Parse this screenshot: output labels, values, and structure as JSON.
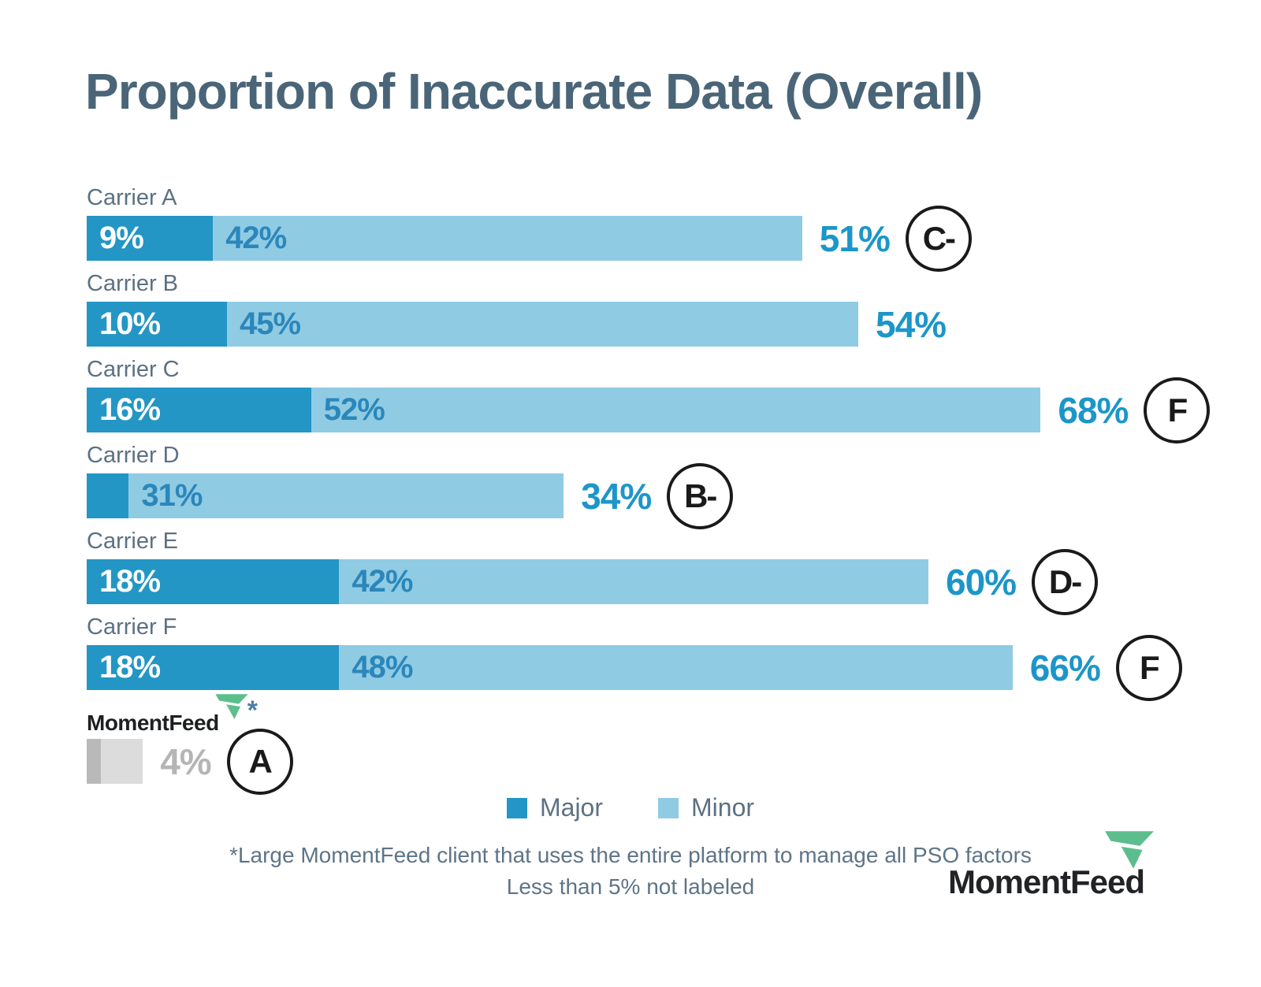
{
  "title": "Proportion of Inaccurate Data (Overall)",
  "colors": {
    "title": "#4a6578",
    "label": "#5c7183",
    "major": "#2396c5",
    "minor": "#90cbe4",
    "minorText": "#2b87ba",
    "total": "#1c96c9",
    "grayMajor": "#b9b9b9",
    "grayMinor": "#dcdcdc",
    "grayTotal": "#b5b5b5",
    "foot": "#5e7488",
    "green": "#5cbe8c"
  },
  "chart_data": {
    "type": "bar",
    "orientation": "horizontal",
    "stacked": true,
    "unit": "%",
    "title": "Proportion of Inaccurate Data (Overall)",
    "series_names": [
      "Major",
      "Minor"
    ],
    "xlim": [
      0,
      100
    ],
    "rows": [
      {
        "label": "Carrier A",
        "major": 9,
        "minor": 42,
        "total": 51,
        "major_label": "9%",
        "minor_label": "42%",
        "total_label": "51%",
        "grade": "C-"
      },
      {
        "label": "Carrier B",
        "major": 10,
        "minor": 45,
        "total": 54,
        "major_label": "10%",
        "minor_label": "45%",
        "total_label": "54%",
        "grade": ""
      },
      {
        "label": "Carrier C",
        "major": 16,
        "minor": 52,
        "total": 68,
        "major_label": "16%",
        "minor_label": "52%",
        "total_label": "68%",
        "grade": "F"
      },
      {
        "label": "Carrier D",
        "major": 3,
        "minor": 31,
        "total": 34,
        "major_label": "",
        "minor_label": "31%",
        "total_label": "34%",
        "grade": "B-"
      },
      {
        "label": "Carrier E",
        "major": 18,
        "minor": 42,
        "total": 60,
        "major_label": "18%",
        "minor_label": "42%",
        "total_label": "60%",
        "grade": "D-"
      },
      {
        "label": "Carrier F",
        "major": 18,
        "minor": 48,
        "total": 66,
        "major_label": "18%",
        "minor_label": "48%",
        "total_label": "66%",
        "grade": "F"
      },
      {
        "label": "MomentFeed",
        "major": 1,
        "minor": 3,
        "total": 4,
        "major_label": "",
        "minor_label": "",
        "total_label": "4%",
        "grade": "A"
      }
    ],
    "legend": [
      {
        "label": "Major",
        "color": "#2396c5"
      },
      {
        "label": "Minor",
        "color": "#90cbe4"
      }
    ]
  },
  "momentfeed_row": {
    "brand": "MomentFeed",
    "asterisk": "*"
  },
  "footnotes": {
    "line1": "*Large MomentFeed client that uses the entire platform to manage all PSO factors",
    "line2": "Less than 5% not labeled"
  },
  "footer": {
    "brand": "MomentFeed"
  }
}
